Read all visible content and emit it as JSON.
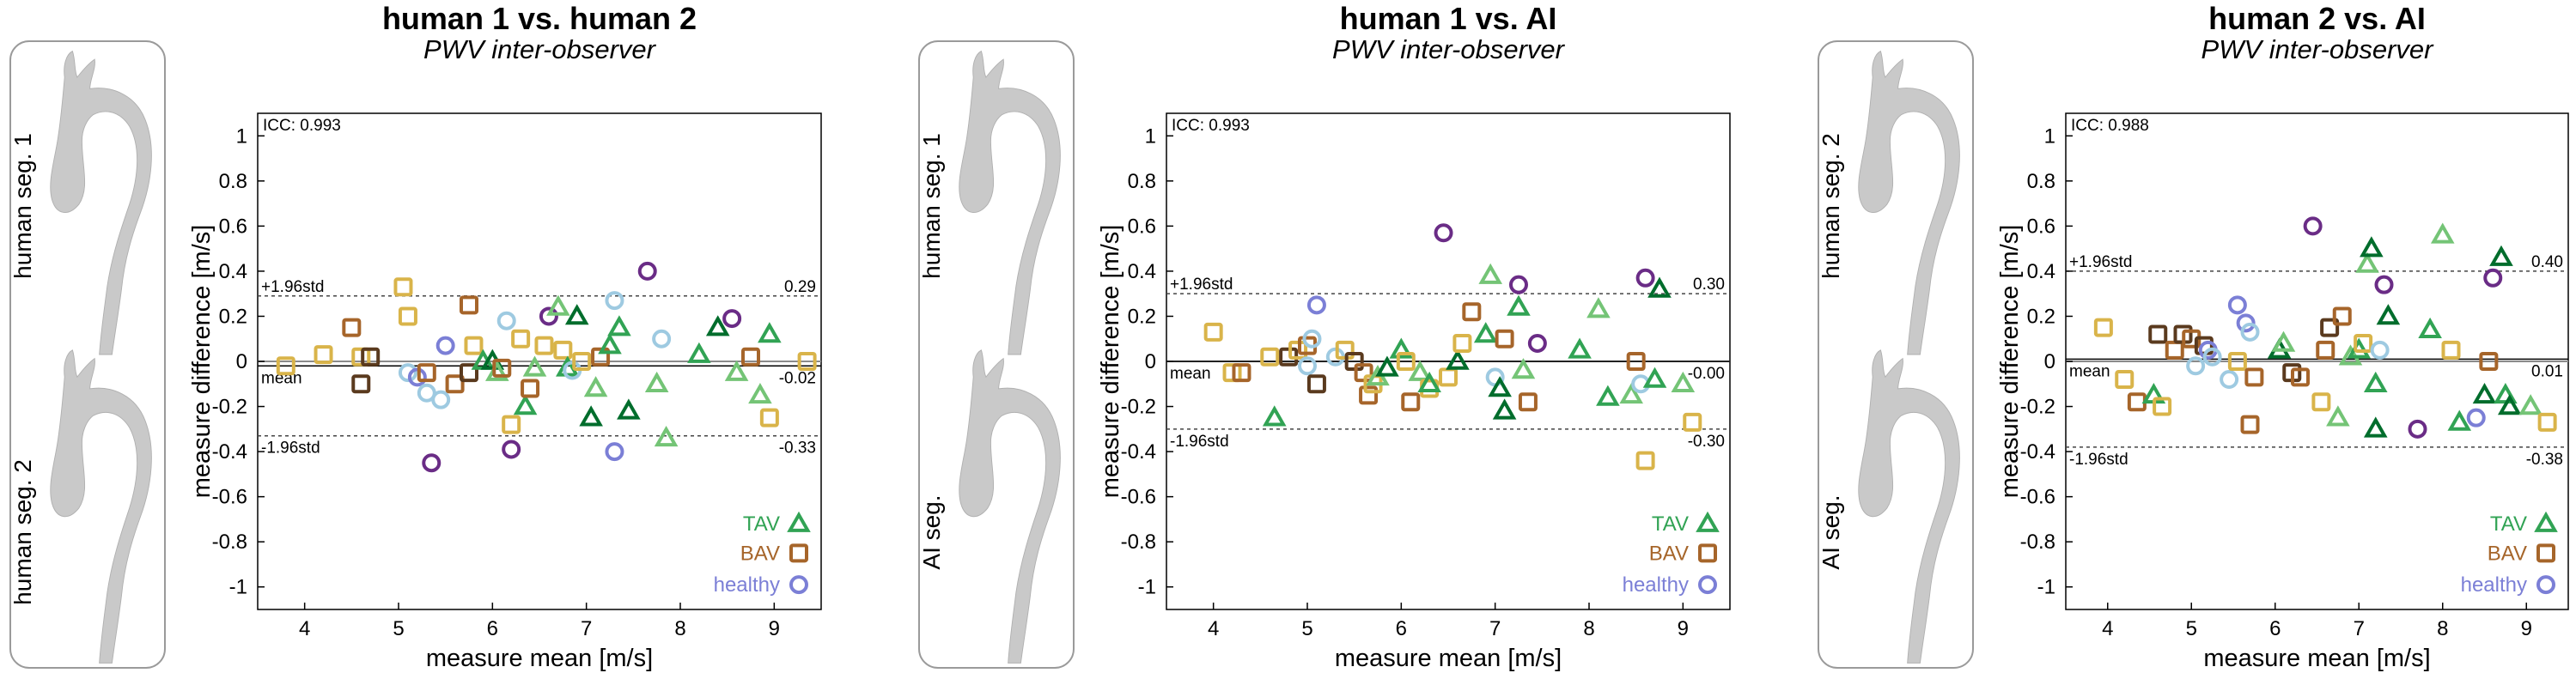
{
  "colors": {
    "tav_light": "#74c476",
    "tav_mid": "#31a354",
    "tav_dark": "#006d2c",
    "bav_light": "#d9b44a",
    "bav_mid": "#a6652a",
    "bav_dark": "#5a3a1e",
    "healthy_light": "#9ecae1",
    "healthy_mid": "#7b7fd6",
    "healthy_dark": "#6a2c86",
    "frame": "#9a9a9a",
    "aorta": "#c9c9c9"
  },
  "chart_data": [
    {
      "type": "scatter",
      "title": "human 1 vs. human 2",
      "subtitle": "PWV inter-observer",
      "xlabel": "measure mean [m/s]",
      "ylabel": "measure difference [m/s]",
      "xlim": [
        3.5,
        9.5
      ],
      "ylim": [
        -1.1,
        1.1
      ],
      "xticks": [
        "4",
        "5",
        "6",
        "7",
        "8",
        "9"
      ],
      "yticks": [
        "1",
        "0.8",
        "0.6",
        "0.4",
        "0.2",
        "0",
        "-0.2",
        "-0.4",
        "-0.6",
        "-0.8",
        "-1"
      ],
      "icc_label": "ICC: 0.993",
      "upper_label": "+1.96std",
      "upper_value": 0.29,
      "upper_text": "0.29",
      "mean_label": "mean",
      "mean_value": -0.02,
      "mean_text": "-0.02",
      "lower_label": "-1.96std",
      "lower_value": -0.33,
      "lower_text": "-0.33",
      "legend": [
        "TAV",
        "BAV",
        "healthy"
      ],
      "seg_top": "human seg. 1",
      "seg_bottom": "human seg. 2",
      "points": [
        [
          "bav",
          1,
          3.8,
          -0.02
        ],
        [
          "bav",
          1,
          4.2,
          0.03
        ],
        [
          "bav",
          2,
          4.5,
          0.15
        ],
        [
          "bav",
          1,
          4.6,
          0.02
        ],
        [
          "bav",
          3,
          4.6,
          -0.1
        ],
        [
          "bav",
          3,
          4.7,
          0.02
        ],
        [
          "bav",
          1,
          5.05,
          0.33
        ],
        [
          "bav",
          1,
          5.1,
          0.2
        ],
        [
          "healthy",
          1,
          5.1,
          -0.05
        ],
        [
          "healthy",
          2,
          5.2,
          -0.07
        ],
        [
          "healthy",
          1,
          5.3,
          -0.14
        ],
        [
          "bav",
          2,
          5.3,
          -0.05
        ],
        [
          "healthy",
          1,
          5.45,
          -0.17
        ],
        [
          "healthy",
          2,
          5.5,
          0.07
        ],
        [
          "healthy",
          3,
          5.35,
          -0.45
        ],
        [
          "bav",
          2,
          5.6,
          -0.1
        ],
        [
          "bav",
          2,
          5.75,
          0.25
        ],
        [
          "bav",
          1,
          5.8,
          0.07
        ],
        [
          "bav",
          3,
          5.75,
          -0.05
        ],
        [
          "tav",
          2,
          5.9,
          0.0
        ],
        [
          "tav",
          3,
          6.0,
          0.0
        ],
        [
          "tav",
          1,
          6.05,
          -0.05
        ],
        [
          "bav",
          2,
          6.1,
          -0.03
        ],
        [
          "healthy",
          1,
          6.15,
          0.18
        ],
        [
          "bav",
          1,
          6.2,
          -0.28
        ],
        [
          "healthy",
          3,
          6.2,
          -0.39
        ],
        [
          "bav",
          1,
          6.3,
          0.1
        ],
        [
          "tav",
          2,
          6.35,
          -0.2
        ],
        [
          "bav",
          2,
          6.4,
          -0.12
        ],
        [
          "tav",
          1,
          6.45,
          -0.03
        ],
        [
          "bav",
          1,
          6.55,
          0.07
        ],
        [
          "healthy",
          3,
          6.6,
          0.2
        ],
        [
          "tav",
          1,
          6.7,
          0.24
        ],
        [
          "bav",
          1,
          6.75,
          0.05
        ],
        [
          "tav",
          2,
          6.8,
          -0.03
        ],
        [
          "healthy",
          1,
          6.85,
          -0.04
        ],
        [
          "tav",
          3,
          6.9,
          0.2
        ],
        [
          "bav",
          1,
          6.95,
          0.0
        ],
        [
          "tav",
          3,
          7.05,
          -0.25
        ],
        [
          "tav",
          1,
          7.1,
          -0.12
        ],
        [
          "bav",
          2,
          7.15,
          0.02
        ],
        [
          "tav",
          2,
          7.25,
          0.07
        ],
        [
          "healthy",
          1,
          7.3,
          0.27
        ],
        [
          "tav",
          2,
          7.35,
          0.15
        ],
        [
          "tav",
          3,
          7.45,
          -0.22
        ],
        [
          "healthy",
          3,
          7.65,
          0.4
        ],
        [
          "tav",
          1,
          7.75,
          -0.1
        ],
        [
          "healthy",
          1,
          7.8,
          0.1
        ],
        [
          "healthy",
          2,
          7.3,
          -0.4
        ],
        [
          "tav",
          1,
          7.85,
          -0.34
        ],
        [
          "tav",
          3,
          8.4,
          0.15
        ],
        [
          "healthy",
          3,
          8.55,
          0.19
        ],
        [
          "tav",
          1,
          8.6,
          -0.05
        ],
        [
          "bav",
          2,
          8.75,
          0.02
        ],
        [
          "tav",
          2,
          8.95,
          0.12
        ],
        [
          "tav",
          1,
          8.85,
          -0.15
        ],
        [
          "bav",
          1,
          8.95,
          -0.25
        ],
        [
          "bav",
          1,
          9.35,
          0.0
        ],
        [
          "tav",
          2,
          8.2,
          0.03
        ]
      ]
    },
    {
      "type": "scatter",
      "title": "human 1 vs. AI",
      "subtitle": "PWV inter-observer",
      "xlabel": "measure mean [m/s]",
      "ylabel": "measure difference [m/s]",
      "xlim": [
        3.5,
        9.5
      ],
      "ylim": [
        -1.1,
        1.1
      ],
      "xticks": [
        "4",
        "5",
        "6",
        "7",
        "8",
        "9"
      ],
      "yticks": [
        "1",
        "0.8",
        "0.6",
        "0.4",
        "0.2",
        "0",
        "-0.2",
        "-0.4",
        "-0.6",
        "-0.8",
        "-1"
      ],
      "icc_label": "ICC: 0.993",
      "upper_label": "+1.96std",
      "upper_value": 0.3,
      "upper_text": "0.30",
      "mean_label": "mean",
      "mean_value": 0.0,
      "mean_text": "-0.00",
      "lower_label": "-1.96std",
      "lower_value": -0.3,
      "lower_text": "-0.30",
      "legend": [
        "TAV",
        "BAV",
        "healthy"
      ],
      "seg_top": "human seg. 1",
      "seg_bottom": "AI seg.",
      "points": [
        [
          "bav",
          1,
          4.0,
          0.13
        ],
        [
          "bav",
          1,
          4.2,
          -0.05
        ],
        [
          "bav",
          2,
          4.3,
          -0.05
        ],
        [
          "bav",
          1,
          4.6,
          0.02
        ],
        [
          "tav",
          2,
          4.65,
          -0.25
        ],
        [
          "bav",
          3,
          4.8,
          0.02
        ],
        [
          "bav",
          1,
          4.9,
          0.05
        ],
        [
          "healthy",
          1,
          5.0,
          -0.02
        ],
        [
          "bav",
          2,
          5.0,
          0.07
        ],
        [
          "healthy",
          1,
          5.05,
          0.1
        ],
        [
          "healthy",
          2,
          5.1,
          0.25
        ],
        [
          "bav",
          3,
          5.1,
          -0.1
        ],
        [
          "healthy",
          1,
          5.3,
          0.02
        ],
        [
          "bav",
          1,
          5.4,
          0.05
        ],
        [
          "bav",
          3,
          5.5,
          0.0
        ],
        [
          "bav",
          2,
          5.6,
          -0.05
        ],
        [
          "bav",
          2,
          5.65,
          -0.15
        ],
        [
          "bav",
          1,
          5.7,
          -0.1
        ],
        [
          "tav",
          1,
          5.75,
          -0.07
        ],
        [
          "tav",
          3,
          5.85,
          -0.03
        ],
        [
          "tav",
          2,
          6.0,
          0.05
        ],
        [
          "bav",
          1,
          6.05,
          0.0
        ],
        [
          "bav",
          2,
          6.1,
          -0.18
        ],
        [
          "tav",
          1,
          6.2,
          -0.05
        ],
        [
          "bav",
          1,
          6.3,
          -0.12
        ],
        [
          "tav",
          2,
          6.3,
          -0.1
        ],
        [
          "healthy",
          3,
          6.45,
          0.57
        ],
        [
          "bav",
          1,
          6.5,
          -0.07
        ],
        [
          "tav",
          3,
          6.6,
          0.0
        ],
        [
          "bav",
          1,
          6.65,
          0.08
        ],
        [
          "bav",
          2,
          6.75,
          0.22
        ],
        [
          "tav",
          2,
          6.9,
          0.12
        ],
        [
          "tav",
          1,
          6.95,
          0.38
        ],
        [
          "healthy",
          1,
          7.0,
          -0.07
        ],
        [
          "tav",
          3,
          7.05,
          -0.12
        ],
        [
          "bav",
          2,
          7.1,
          0.1
        ],
        [
          "healthy",
          3,
          7.25,
          0.34
        ],
        [
          "tav",
          2,
          7.25,
          0.24
        ],
        [
          "tav",
          1,
          7.3,
          -0.04
        ],
        [
          "bav",
          2,
          7.35,
          -0.18
        ],
        [
          "healthy",
          3,
          7.45,
          0.08
        ],
        [
          "tav",
          3,
          7.1,
          -0.22
        ],
        [
          "tav",
          2,
          7.9,
          0.05
        ],
        [
          "tav",
          1,
          8.1,
          0.23
        ],
        [
          "tav",
          2,
          8.2,
          -0.16
        ],
        [
          "bav",
          2,
          8.5,
          0.0
        ],
        [
          "tav",
          1,
          8.45,
          -0.15
        ],
        [
          "healthy",
          3,
          8.6,
          0.37
        ],
        [
          "healthy",
          1,
          8.55,
          -0.1
        ],
        [
          "tav",
          2,
          8.7,
          -0.08
        ],
        [
          "tav",
          3,
          8.75,
          0.32
        ],
        [
          "bav",
          1,
          8.6,
          -0.44
        ],
        [
          "tav",
          1,
          9.0,
          -0.1
        ],
        [
          "bav",
          1,
          9.1,
          -0.27
        ]
      ]
    },
    {
      "type": "scatter",
      "title": "human 2 vs. AI",
      "subtitle": "PWV inter-observer",
      "xlabel": "measure mean [m/s]",
      "ylabel": "measure difference [m/s]",
      "xlim": [
        3.5,
        9.5
      ],
      "ylim": [
        -1.1,
        1.1
      ],
      "xticks": [
        "4",
        "5",
        "6",
        "7",
        "8",
        "9"
      ],
      "yticks": [
        "1",
        "0.8",
        "0.6",
        "0.4",
        "0.2",
        "0",
        "-0.2",
        "-0.4",
        "-0.6",
        "-0.8",
        "-1"
      ],
      "icc_label": "ICC: 0.988",
      "upper_label": "+1.96std",
      "upper_value": 0.4,
      "upper_text": "0.40",
      "mean_label": "mean",
      "mean_value": 0.01,
      "mean_text": "0.01",
      "lower_label": "-1.96std",
      "lower_value": -0.38,
      "lower_text": "-0.38",
      "legend": [
        "TAV",
        "BAV",
        "healthy"
      ],
      "seg_top": "human seg. 2",
      "seg_bottom": "AI seg.",
      "points": [
        [
          "bav",
          1,
          3.95,
          0.15
        ],
        [
          "bav",
          1,
          4.2,
          -0.08
        ],
        [
          "bav",
          2,
          4.35,
          -0.18
        ],
        [
          "tav",
          2,
          4.55,
          -0.15
        ],
        [
          "bav",
          3,
          4.6,
          0.12
        ],
        [
          "bav",
          1,
          4.65,
          -0.2
        ],
        [
          "bav",
          2,
          4.8,
          0.05
        ],
        [
          "bav",
          3,
          4.9,
          0.12
        ],
        [
          "bav",
          2,
          5.0,
          0.1
        ],
        [
          "healthy",
          1,
          5.05,
          -0.02
        ],
        [
          "bav",
          3,
          5.15,
          0.07
        ],
        [
          "healthy",
          2,
          5.2,
          0.05
        ],
        [
          "healthy",
          1,
          5.25,
          0.02
        ],
        [
          "healthy",
          1,
          5.45,
          -0.08
        ],
        [
          "healthy",
          2,
          5.55,
          0.25
        ],
        [
          "bav",
          1,
          5.55,
          0.0
        ],
        [
          "healthy",
          2,
          5.65,
          0.17
        ],
        [
          "healthy",
          1,
          5.7,
          0.13
        ],
        [
          "bav",
          2,
          5.7,
          -0.28
        ],
        [
          "bav",
          2,
          5.75,
          -0.07
        ],
        [
          "tav",
          3,
          6.05,
          0.05
        ],
        [
          "tav",
          1,
          6.1,
          0.08
        ],
        [
          "bav",
          3,
          6.2,
          -0.05
        ],
        [
          "bav",
          2,
          6.3,
          -0.07
        ],
        [
          "healthy",
          3,
          6.45,
          0.6
        ],
        [
          "bav",
          1,
          6.55,
          -0.18
        ],
        [
          "bav",
          2,
          6.6,
          0.05
        ],
        [
          "bav",
          3,
          6.65,
          0.15
        ],
        [
          "tav",
          1,
          6.75,
          -0.25
        ],
        [
          "bav",
          2,
          6.8,
          0.2
        ],
        [
          "tav",
          1,
          6.9,
          0.02
        ],
        [
          "tav",
          2,
          7.0,
          0.05
        ],
        [
          "bav",
          1,
          7.05,
          0.08
        ],
        [
          "tav",
          1,
          7.1,
          0.43
        ],
        [
          "tav",
          3,
          7.15,
          0.5
        ],
        [
          "tav",
          2,
          7.2,
          -0.1
        ],
        [
          "healthy",
          1,
          7.25,
          0.05
        ],
        [
          "tav",
          3,
          7.2,
          -0.3
        ],
        [
          "healthy",
          3,
          7.3,
          0.34
        ],
        [
          "tav",
          3,
          7.35,
          0.2
        ],
        [
          "healthy",
          3,
          7.7,
          -0.3
        ],
        [
          "tav",
          2,
          7.85,
          0.14
        ],
        [
          "tav",
          1,
          8.0,
          0.56
        ],
        [
          "bav",
          1,
          8.1,
          0.05
        ],
        [
          "tav",
          2,
          8.2,
          -0.27
        ],
        [
          "healthy",
          2,
          8.4,
          -0.25
        ],
        [
          "tav",
          3,
          8.5,
          -0.15
        ],
        [
          "bav",
          2,
          8.55,
          0.0
        ],
        [
          "healthy",
          3,
          8.6,
          0.37
        ],
        [
          "tav",
          3,
          8.7,
          0.46
        ],
        [
          "tav",
          2,
          8.75,
          -0.15
        ],
        [
          "tav",
          3,
          8.8,
          -0.2
        ],
        [
          "tav",
          1,
          9.05,
          -0.2
        ],
        [
          "bav",
          1,
          9.25,
          -0.27
        ]
      ]
    }
  ]
}
